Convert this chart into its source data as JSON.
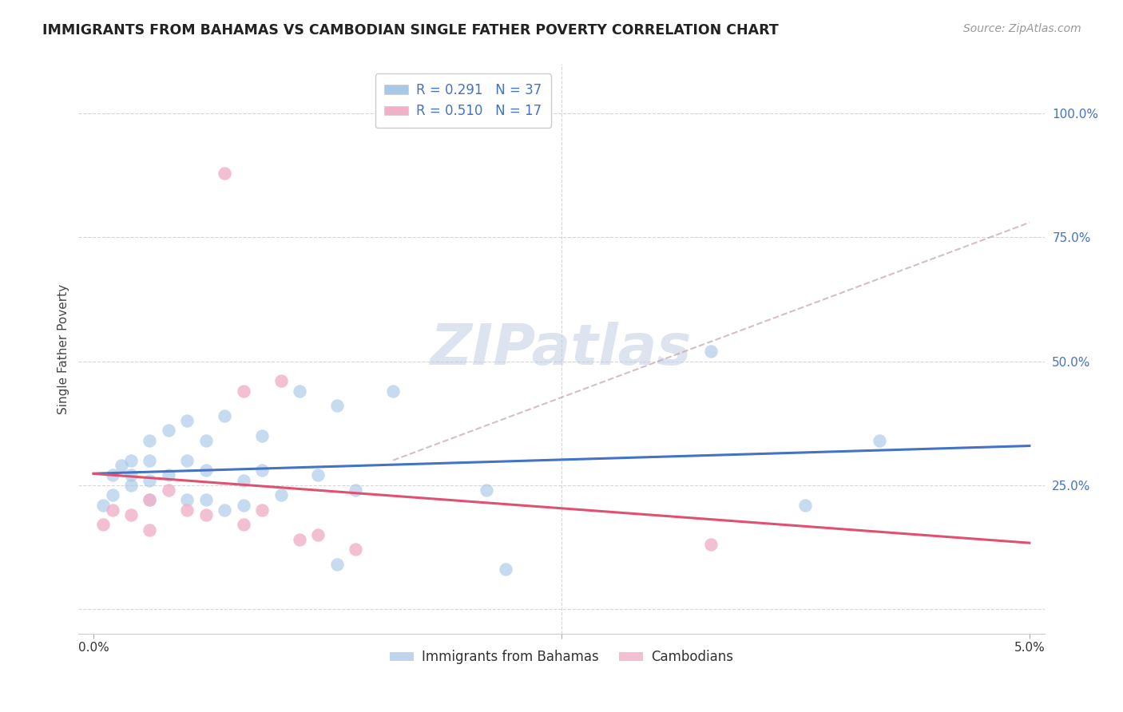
{
  "title": "IMMIGRANTS FROM BAHAMAS VS CAMBODIAN SINGLE FATHER POVERTY CORRELATION CHART",
  "source": "Source: ZipAtlas.com",
  "ylabel": "Single Father Poverty",
  "legend1_R": "R = 0.291",
  "legend1_N": "N = 37",
  "legend2_R": "R = 0.510",
  "legend2_N": "N = 17",
  "legend_bottom_label1": "Immigrants from Bahamas",
  "legend_bottom_label2": "Cambodians",
  "blue_scatter": "#a8c8e8",
  "pink_scatter": "#f0b0c8",
  "line_blue": "#4472C4",
  "line_pink": "#E05070",
  "line_dashed_color": "#c8a8b0",
  "title_color": "#222222",
  "source_color": "#999999",
  "axis_label_color": "#4472C4",
  "watermark_color": "#dde4f0",
  "grid_color": "#cccccc",
  "xlim_min": 0.0,
  "xlim_max": 0.05,
  "ylim_min": -0.05,
  "ylim_max": 1.1,
  "bahamas_x": [
    0.0005,
    0.001,
    0.001,
    0.0015,
    0.002,
    0.002,
    0.002,
    0.003,
    0.003,
    0.003,
    0.003,
    0.004,
    0.004,
    0.005,
    0.005,
    0.006,
    0.006,
    0.006,
    0.007,
    0.007,
    0.008,
    0.008,
    0.009,
    0.009,
    0.01,
    0.011,
    0.012,
    0.013,
    0.013,
    0.014,
    0.016,
    0.021,
    0.022,
    0.033,
    0.038,
    0.042,
    0.005
  ],
  "bahamas_y": [
    0.21,
    0.27,
    0.23,
    0.29,
    0.3,
    0.27,
    0.25,
    0.22,
    0.26,
    0.3,
    0.34,
    0.36,
    0.27,
    0.22,
    0.3,
    0.28,
    0.34,
    0.22,
    0.2,
    0.39,
    0.21,
    0.26,
    0.28,
    0.35,
    0.23,
    0.44,
    0.27,
    0.09,
    0.41,
    0.24,
    0.44,
    0.24,
    0.08,
    0.52,
    0.21,
    0.34,
    0.38
  ],
  "cambodian_x": [
    0.0005,
    0.001,
    0.002,
    0.003,
    0.003,
    0.004,
    0.005,
    0.006,
    0.007,
    0.008,
    0.009,
    0.01,
    0.011,
    0.012,
    0.014,
    0.033,
    0.008
  ],
  "cambodian_y": [
    0.17,
    0.2,
    0.19,
    0.16,
    0.22,
    0.24,
    0.2,
    0.19,
    0.88,
    0.17,
    0.2,
    0.46,
    0.14,
    0.15,
    0.12,
    0.13,
    0.44
  ],
  "dashed_line_x": [
    0.016,
    0.05
  ],
  "dashed_line_y": [
    0.3,
    0.78
  ],
  "yticks": [
    0.0,
    0.25,
    0.5,
    0.75,
    1.0
  ],
  "ytick_labels": [
    "",
    "25.0%",
    "50.0%",
    "75.0%",
    "100.0%"
  ],
  "xticks": [
    0.0,
    0.025,
    0.05
  ],
  "xtick_labels": [
    "0.0%",
    "",
    "5.0%"
  ]
}
